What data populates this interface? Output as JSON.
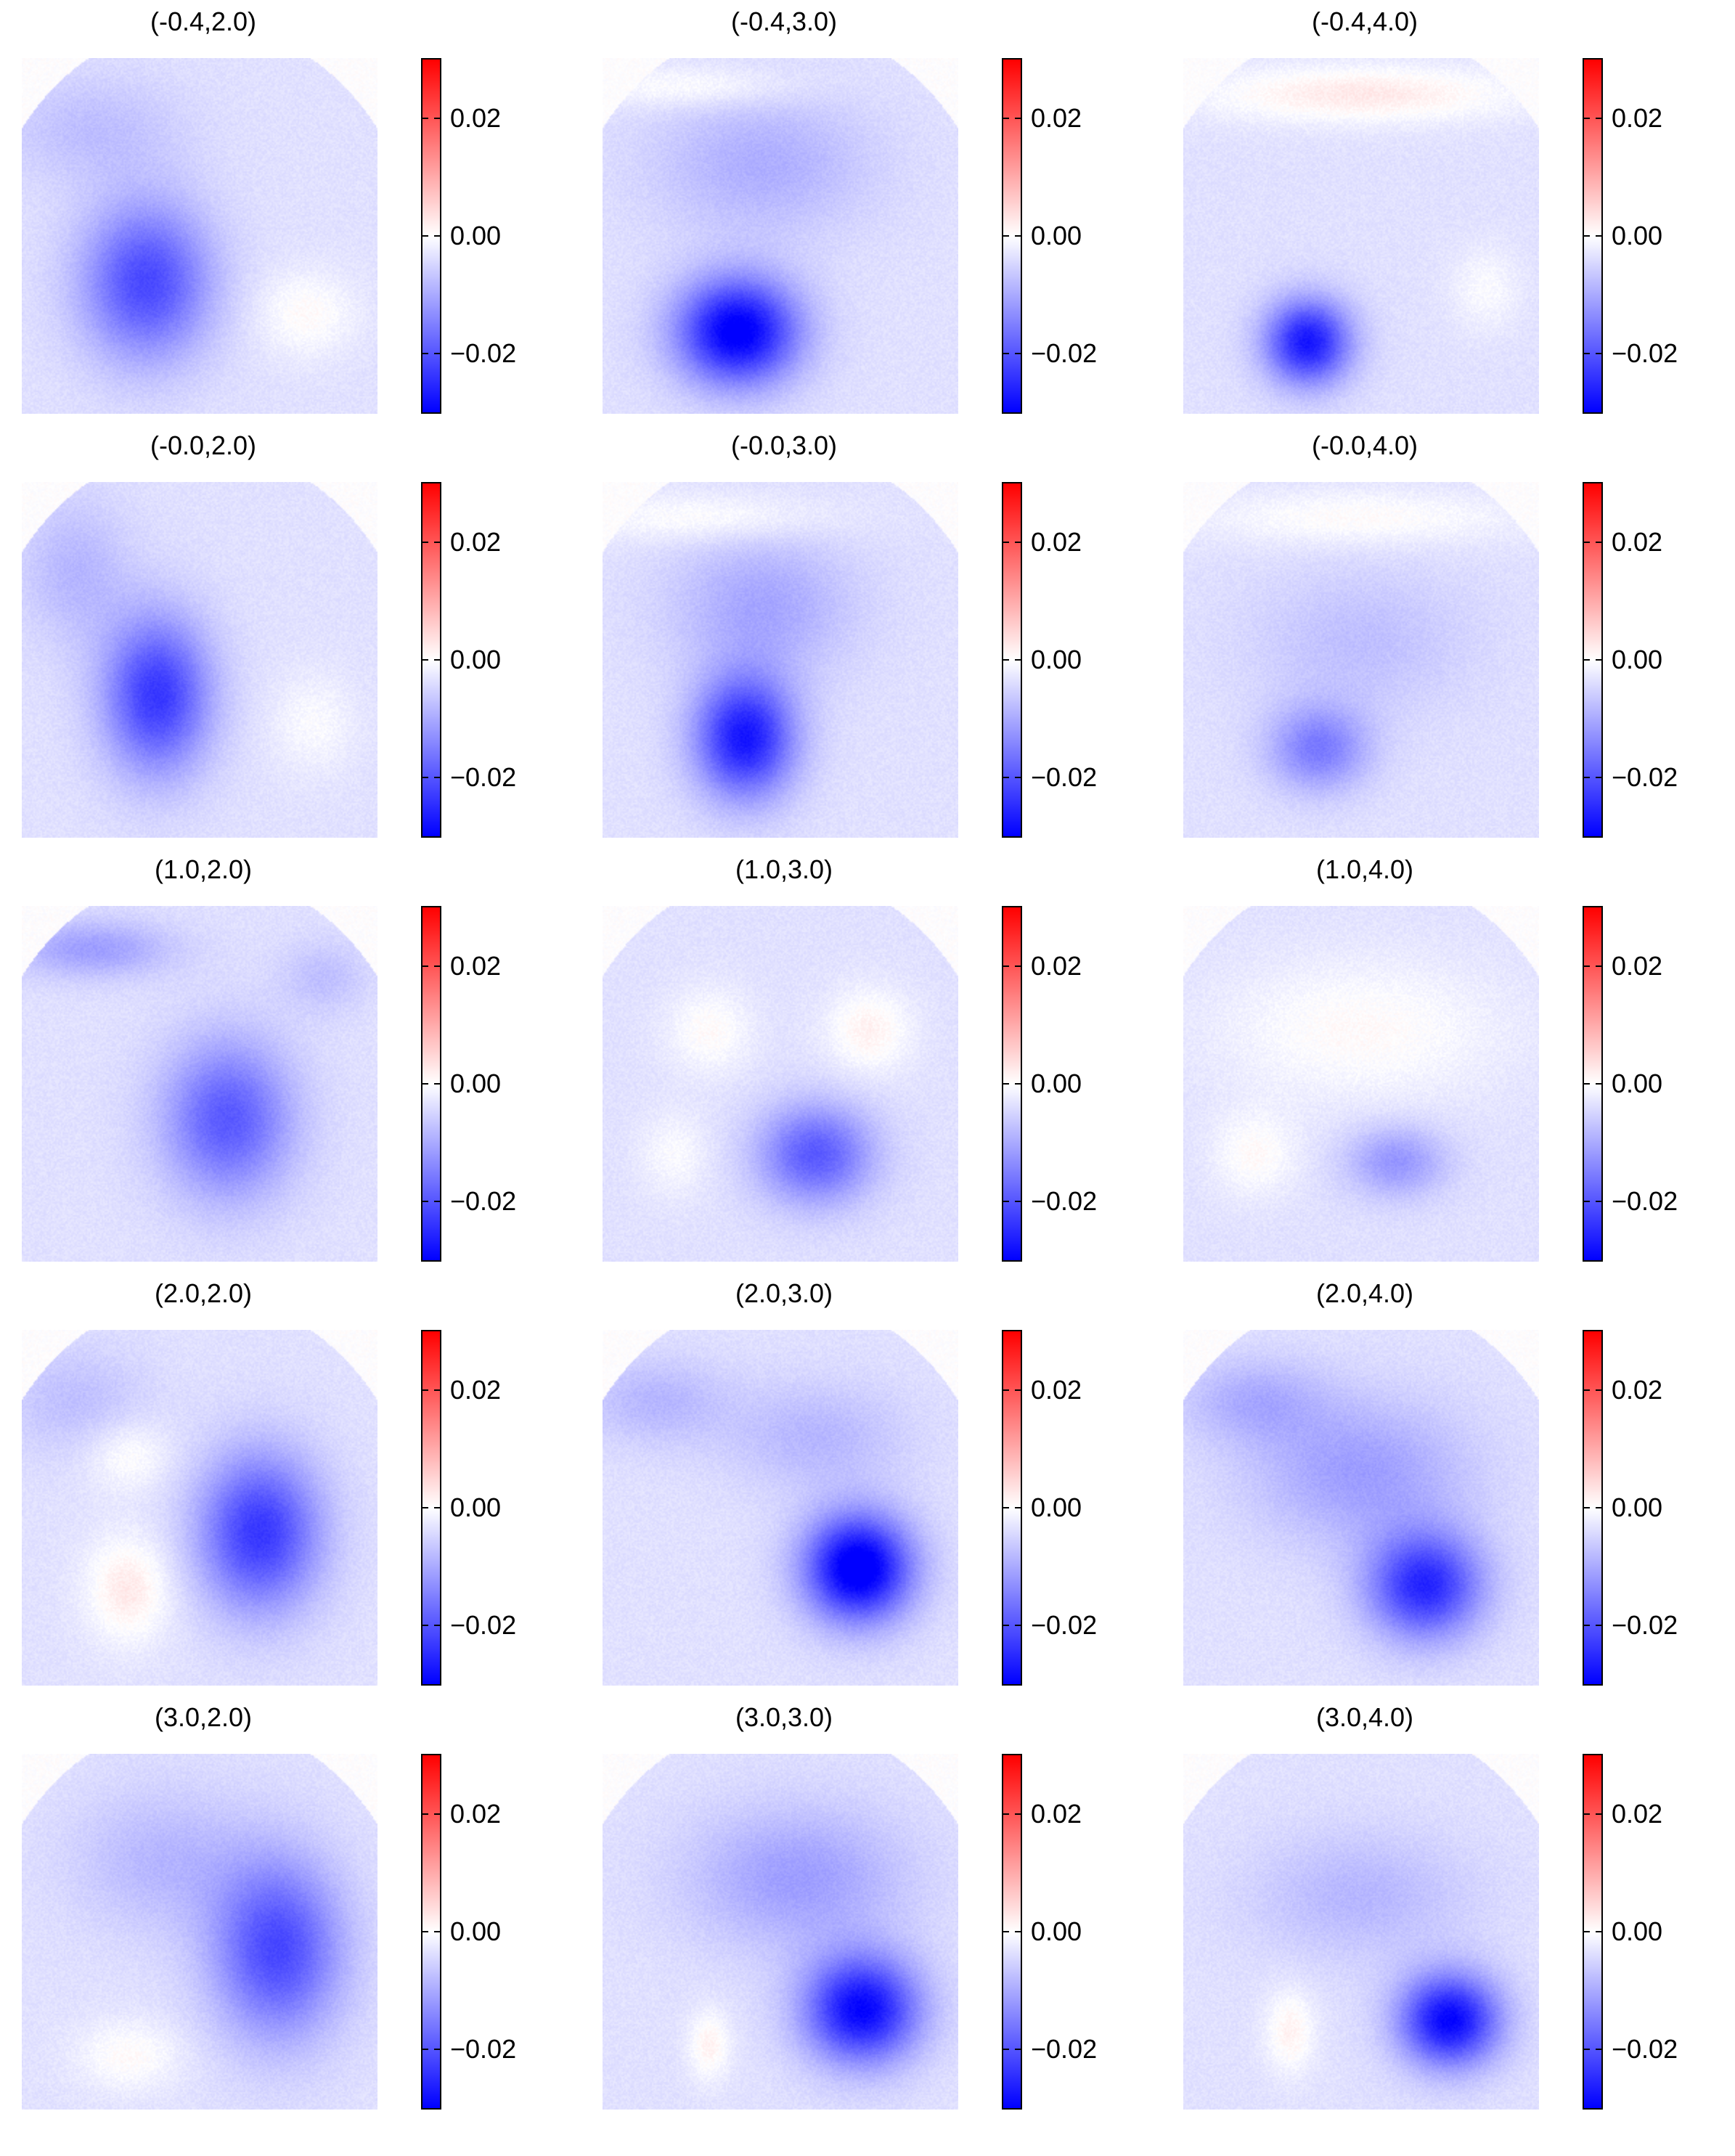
{
  "chart_data": {
    "type": "heatmap",
    "layout": {
      "rows": 5,
      "cols": 3
    },
    "colormap": {
      "name": "bwr",
      "low": "#0000ff",
      "mid": "#ffffff",
      "high": "#ff0000"
    },
    "colorbar": {
      "vmin": -0.03,
      "vmax": 0.03,
      "ticks": [
        0.02,
        0.0,
        -0.02
      ],
      "tick_labels": [
        "0.02",
        "0.00",
        "−0.02"
      ]
    },
    "panels": [
      {
        "title": "(-0.4,2.0)",
        "field": [
          {
            "x": 0.35,
            "y": 0.63,
            "sx": 0.18,
            "sy": 0.22,
            "a": -0.018
          },
          {
            "x": 0.8,
            "y": 0.72,
            "sx": 0.14,
            "sy": 0.12,
            "a": 0.004
          },
          {
            "x": 0.2,
            "y": 0.2,
            "sx": 0.25,
            "sy": 0.15,
            "a": -0.004
          }
        ]
      },
      {
        "title": "(-0.4,3.0)",
        "field": [
          {
            "x": 0.38,
            "y": 0.77,
            "sx": 0.17,
            "sy": 0.15,
            "a": -0.028
          },
          {
            "x": 0.45,
            "y": 0.3,
            "sx": 0.3,
            "sy": 0.2,
            "a": -0.006
          },
          {
            "x": 0.25,
            "y": 0.08,
            "sx": 0.3,
            "sy": 0.06,
            "a": 0.004
          }
        ]
      },
      {
        "title": "(-0.4,4.0)",
        "field": [
          {
            "x": 0.35,
            "y": 0.8,
            "sx": 0.12,
            "sy": 0.12,
            "a": -0.024
          },
          {
            "x": 0.5,
            "y": 0.1,
            "sx": 0.45,
            "sy": 0.08,
            "a": 0.006
          },
          {
            "x": 0.85,
            "y": 0.65,
            "sx": 0.1,
            "sy": 0.12,
            "a": 0.003
          }
        ]
      },
      {
        "title": "(-0.0,2.0)",
        "field": [
          {
            "x": 0.38,
            "y": 0.6,
            "sx": 0.15,
            "sy": 0.22,
            "a": -0.02
          },
          {
            "x": 0.82,
            "y": 0.68,
            "sx": 0.12,
            "sy": 0.14,
            "a": 0.003
          },
          {
            "x": 0.15,
            "y": 0.25,
            "sx": 0.15,
            "sy": 0.2,
            "a": -0.005
          }
        ]
      },
      {
        "title": "(-0.0,3.0)",
        "field": [
          {
            "x": 0.4,
            "y": 0.72,
            "sx": 0.14,
            "sy": 0.17,
            "a": -0.024
          },
          {
            "x": 0.45,
            "y": 0.35,
            "sx": 0.25,
            "sy": 0.2,
            "a": -0.007
          },
          {
            "x": 0.3,
            "y": 0.1,
            "sx": 0.35,
            "sy": 0.07,
            "a": 0.004
          }
        ]
      },
      {
        "title": "(-0.0,4.0)",
        "field": [
          {
            "x": 0.38,
            "y": 0.75,
            "sx": 0.14,
            "sy": 0.12,
            "a": -0.012
          },
          {
            "x": 0.5,
            "y": 0.1,
            "sx": 0.45,
            "sy": 0.08,
            "a": 0.004
          },
          {
            "x": 0.5,
            "y": 0.45,
            "sx": 0.3,
            "sy": 0.2,
            "a": -0.004
          }
        ]
      },
      {
        "title": "(1.0,2.0)",
        "field": [
          {
            "x": 0.58,
            "y": 0.6,
            "sx": 0.18,
            "sy": 0.22,
            "a": -0.016
          },
          {
            "x": 0.2,
            "y": 0.12,
            "sx": 0.22,
            "sy": 0.08,
            "a": -0.008
          },
          {
            "x": 0.85,
            "y": 0.2,
            "sx": 0.12,
            "sy": 0.1,
            "a": -0.004
          }
        ]
      },
      {
        "title": "(1.0,3.0)",
        "field": [
          {
            "x": 0.6,
            "y": 0.7,
            "sx": 0.16,
            "sy": 0.14,
            "a": -0.016
          },
          {
            "x": 0.3,
            "y": 0.35,
            "sx": 0.12,
            "sy": 0.12,
            "a": 0.004
          },
          {
            "x": 0.75,
            "y": 0.35,
            "sx": 0.12,
            "sy": 0.12,
            "a": 0.005
          },
          {
            "x": 0.2,
            "y": 0.7,
            "sx": 0.1,
            "sy": 0.12,
            "a": 0.003
          }
        ]
      },
      {
        "title": "(1.0,4.0)",
        "field": [
          {
            "x": 0.6,
            "y": 0.72,
            "sx": 0.14,
            "sy": 0.1,
            "a": -0.009
          },
          {
            "x": 0.5,
            "y": 0.35,
            "sx": 0.4,
            "sy": 0.2,
            "a": 0.004
          },
          {
            "x": 0.2,
            "y": 0.7,
            "sx": 0.12,
            "sy": 0.12,
            "a": 0.004
          }
        ]
      },
      {
        "title": "(2.0,2.0)",
        "field": [
          {
            "x": 0.67,
            "y": 0.57,
            "sx": 0.17,
            "sy": 0.22,
            "a": -0.02
          },
          {
            "x": 0.3,
            "y": 0.73,
            "sx": 0.12,
            "sy": 0.15,
            "a": 0.006
          },
          {
            "x": 0.3,
            "y": 0.35,
            "sx": 0.12,
            "sy": 0.1,
            "a": 0.004
          },
          {
            "x": 0.15,
            "y": 0.2,
            "sx": 0.2,
            "sy": 0.15,
            "a": -0.004
          }
        ]
      },
      {
        "title": "(2.0,3.0)",
        "field": [
          {
            "x": 0.72,
            "y": 0.67,
            "sx": 0.15,
            "sy": 0.15,
            "a": -0.03
          },
          {
            "x": 0.6,
            "y": 0.3,
            "sx": 0.25,
            "sy": 0.15,
            "a": -0.005
          },
          {
            "x": 0.15,
            "y": 0.2,
            "sx": 0.2,
            "sy": 0.12,
            "a": -0.005
          }
        ]
      },
      {
        "title": "(2.0,4.0)",
        "field": [
          {
            "x": 0.68,
            "y": 0.72,
            "sx": 0.16,
            "sy": 0.15,
            "a": -0.022
          },
          {
            "x": 0.5,
            "y": 0.4,
            "sx": 0.3,
            "sy": 0.2,
            "a": -0.008
          },
          {
            "x": 0.2,
            "y": 0.2,
            "sx": 0.2,
            "sy": 0.12,
            "a": -0.006
          }
        ]
      },
      {
        "title": "(3.0,2.0)",
        "field": [
          {
            "x": 0.72,
            "y": 0.55,
            "sx": 0.18,
            "sy": 0.25,
            "a": -0.018
          },
          {
            "x": 0.3,
            "y": 0.85,
            "sx": 0.15,
            "sy": 0.1,
            "a": 0.004
          },
          {
            "x": 0.4,
            "y": 0.3,
            "sx": 0.25,
            "sy": 0.2,
            "a": -0.005
          }
        ]
      },
      {
        "title": "(3.0,3.0)",
        "field": [
          {
            "x": 0.73,
            "y": 0.72,
            "sx": 0.16,
            "sy": 0.15,
            "a": -0.026
          },
          {
            "x": 0.55,
            "y": 0.35,
            "sx": 0.3,
            "sy": 0.2,
            "a": -0.008
          },
          {
            "x": 0.3,
            "y": 0.82,
            "sx": 0.06,
            "sy": 0.1,
            "a": 0.005
          }
        ]
      },
      {
        "title": "(3.0,4.0)",
        "field": [
          {
            "x": 0.75,
            "y": 0.75,
            "sx": 0.14,
            "sy": 0.13,
            "a": -0.026
          },
          {
            "x": 0.5,
            "y": 0.4,
            "sx": 0.3,
            "sy": 0.18,
            "a": -0.005
          },
          {
            "x": 0.3,
            "y": 0.78,
            "sx": 0.07,
            "sy": 0.12,
            "a": 0.005
          }
        ]
      }
    ]
  }
}
